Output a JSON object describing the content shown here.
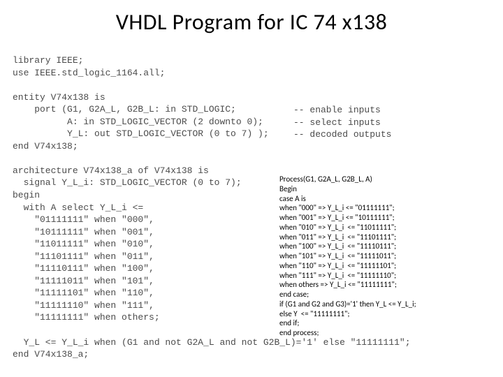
{
  "title": "VHDL Program for IC 74 x138",
  "code_left": "library IEEE;\nuse IEEE.std_logic_1164.all;\n\nentity V74x138 is\n    port (G1, G2A_L, G2B_L: in STD_LOGIC;        \n          A: in STD_LOGIC_VECTOR (2 downto 0);   \n          Y_L: out STD_LOGIC_VECTOR (0 to 7) );  \nend V74x138;\n\narchitecture V74x138_a of V74x138 is\n  signal Y_L_i: STD_LOGIC_VECTOR (0 to 7);\nbegin\n  with A select Y_L_i <=\n    \"01111111\" when \"000\",\n    \"10111111\" when \"001\",\n    \"11011111\" when \"010\",\n    \"11101111\" when \"011\",\n    \"11110111\" when \"100\",\n    \"11111011\" when \"101\",\n    \"11111101\" when \"110\",\n    \"11111110\" when \"111\",\n    \"11111111\" when others;\n\n  Y_L <= Y_L_i when (G1 and not G2A_L and not G2B_L)='1' else \"11111111\";\nend V74x138_a;",
  "comments": "-- enable inputs\n-- select inputs\n-- decoded outputs",
  "process_block": "Process(G1, G2A_L, G2B_L, A)\nBegin\ncase A is\nwhen \"000\" => Y_L_i <= \"01111111\";\nwhen \"001\" => Y_L_i <= \"10111111\";\nwhen \"010\" => Y_L_i  <= \"11011111\";\nwhen \"011\" => Y_L_i  <= \"11101111\";\nwhen \"100\" => Y_L_i  <= \"11110111\";\nwhen \"101\" => Y_L_i  <= \"11111011\";\nwhen \"110\" => Y_L_i  <= \"11111101\";\nwhen \"111\" => Y_L_i  <= \"11111110\";\nwhen others => Y_L_i <= \"11111111\";\nend case;\nif (G1 and G2 and G3)='1' then Y_L <= Y_L_i;\nelse Y  <= \"11111111\";\nend if;\nend process;"
}
